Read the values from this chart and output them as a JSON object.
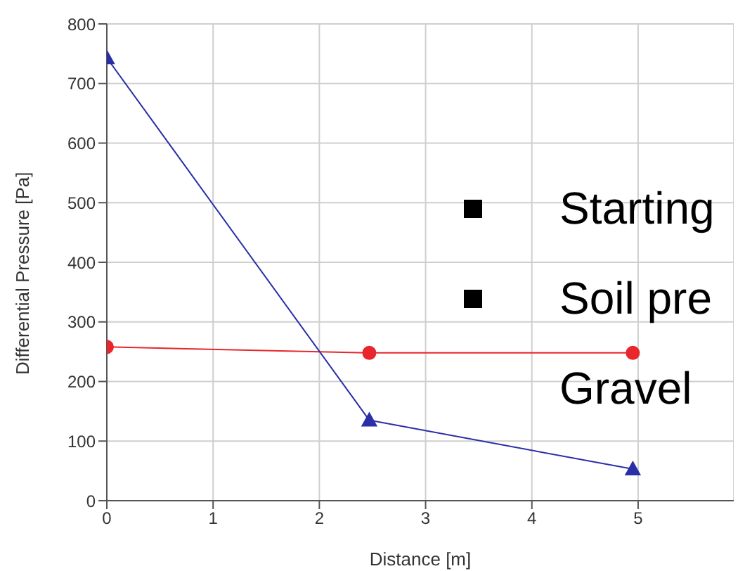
{
  "chart_data": {
    "type": "line",
    "xlabel": "Distance [m]",
    "ylabel": "Differential Pressure [Pa]",
    "xlim": [
      0,
      5.9
    ],
    "xticks": [
      0,
      1,
      2,
      3,
      4,
      5
    ],
    "ylim": [
      0,
      800
    ],
    "yticks": [
      0,
      100,
      200,
      300,
      400,
      500,
      600,
      700,
      800
    ],
    "grid": true,
    "line_style": "solid",
    "series": [
      {
        "color": "#e8262b",
        "marker": "circle",
        "x": [
          0,
          2.47,
          4.95
        ],
        "values": [
          258,
          248,
          248
        ]
      },
      {
        "color": "#2a2fa8",
        "marker": "triangle",
        "x": [
          0,
          2.47,
          4.95
        ],
        "values": [
          743,
          135,
          53
        ]
      }
    ],
    "annotations": [
      "Starting",
      "Soil pre",
      "Gravel"
    ]
  }
}
